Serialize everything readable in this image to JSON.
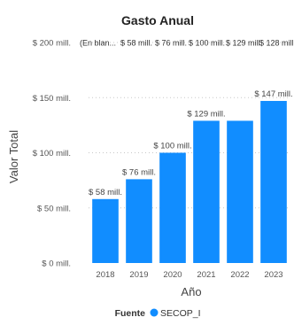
{
  "chart_data": {
    "type": "bar",
    "title": "Gasto Anual",
    "xlabel": "Año",
    "ylabel": "Valor Total",
    "categories": [
      "2018",
      "2019",
      "2020",
      "2021",
      "2022",
      "2023"
    ],
    "series": [
      {
        "name": "SECOP_I",
        "values": [
          58,
          76,
          100,
          129,
          129,
          147
        ],
        "data_labels": [
          "$ 58 mill.",
          "$ 76 mill.",
          "$ 100 mill.",
          "$ 129 mill.",
          "",
          "$ 147 mill."
        ],
        "color": "#118DFF"
      }
    ],
    "ylim": [
      0,
      200
    ],
    "y_ticks": [
      {
        "value": 0,
        "label": "$ 0 mill."
      },
      {
        "value": 50,
        "label": "$ 50 mill."
      },
      {
        "value": 100,
        "label": "$ 100 mill."
      },
      {
        "value": 150,
        "label": "$ 150 mill."
      },
      {
        "value": 200,
        "label": "$ 200 mill."
      }
    ],
    "top_row_labels": [
      "(En blan...",
      "$ 58 mill.",
      "$ 76 mill.",
      "$ 100 mill.",
      "$ 129 mill.",
      "$ 128 mill."
    ],
    "grid": true,
    "legend": {
      "title": "Fuente",
      "position": "bottom",
      "entries": [
        "SECOP_I"
      ]
    }
  }
}
